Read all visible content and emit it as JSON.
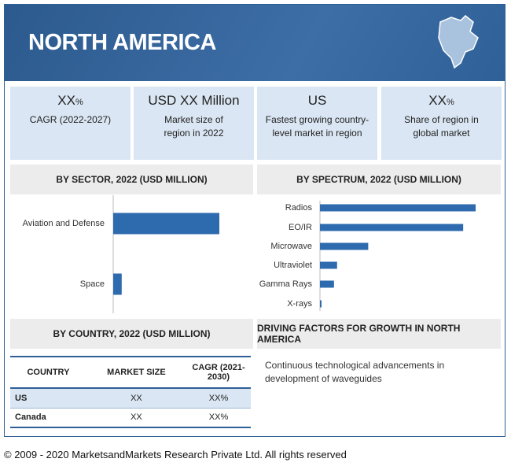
{
  "header": {
    "title": "NORTH AMERICA"
  },
  "stats": [
    {
      "value": "XX",
      "unit": "%",
      "label": "CAGR (2022-2027)"
    },
    {
      "value": "USD XX Million",
      "label": "Market size of region in 2022"
    },
    {
      "value": "US",
      "label": "Fastest growing country-level market in region"
    },
    {
      "value": "XX",
      "unit": "%",
      "label": "Share of region in global market"
    }
  ],
  "chart_data": [
    {
      "type": "bar",
      "orientation": "horizontal",
      "title": "BY  SECTOR, 2022 (USD MILLION)",
      "categories": [
        "Aviation and Defense",
        "Space"
      ],
      "values": [
        100,
        8
      ],
      "xlim": [
        0,
        100
      ],
      "color": "#2e6aae"
    },
    {
      "type": "bar",
      "orientation": "horizontal",
      "title": "BY SPECTRUM, 2022 (USD MILLION)",
      "categories": [
        "Radios",
        "EO/IR",
        "Microwave",
        "Ultraviolet",
        "Gamma Rays",
        "X-rays"
      ],
      "values": [
        100,
        92,
        31,
        11,
        9,
        1
      ],
      "xlim": [
        0,
        100
      ],
      "color": "#2e6aae"
    }
  ],
  "country_table": {
    "title": "BY COUNTRY, 2022 (USD MILLION)",
    "columns": [
      "COUNTRY",
      "MARKET SIZE",
      "CAGR (2021-2030)"
    ],
    "rows": [
      [
        "US",
        "XX",
        "XX%"
      ],
      [
        "Canada",
        "XX",
        "XX%"
      ]
    ]
  },
  "drivers": {
    "title": "DRIVING FACTORS FOR GROWTH IN NORTH AMERICA",
    "items": [
      "Continuous technological advancements in development of waveguides"
    ]
  },
  "footer": {
    "copyright": "© 2009 - 2020 MarketsandMarkets Research Private Ltd. All rights reserved"
  }
}
